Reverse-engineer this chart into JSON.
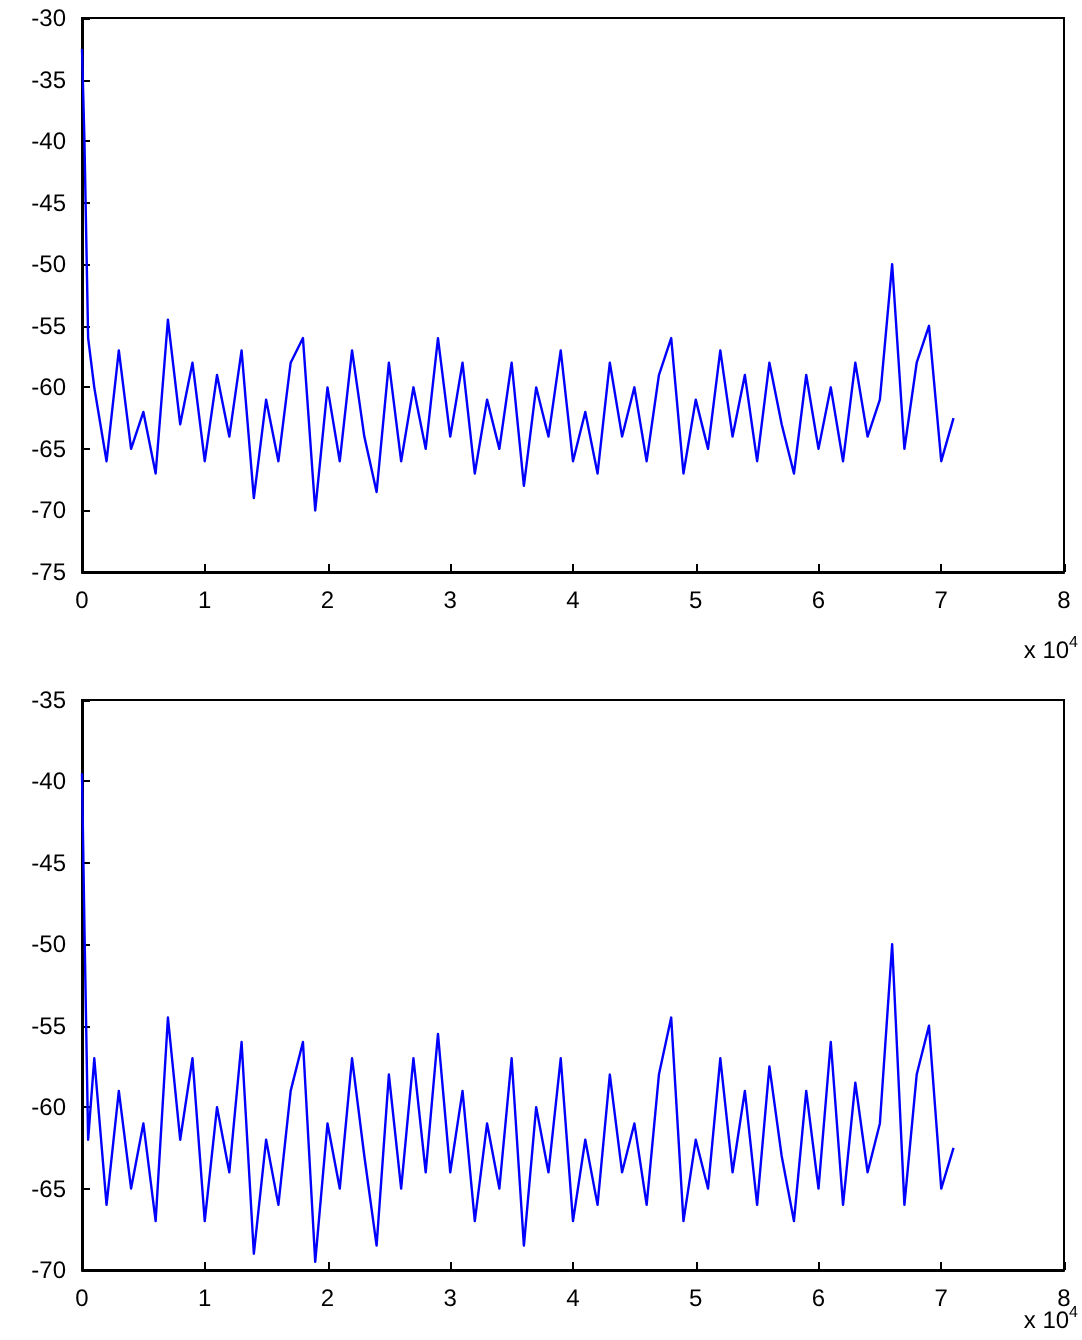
{
  "chart_data": [
    {
      "type": "line",
      "x": [
        0,
        0.02,
        0.05,
        0.1,
        0.2,
        0.3,
        0.4,
        0.5,
        0.6,
        0.7,
        0.8,
        0.9,
        1.0,
        1.1,
        1.2,
        1.3,
        1.4,
        1.5,
        1.6,
        1.7,
        1.8,
        1.9,
        2.0,
        2.1,
        2.2,
        2.3,
        2.4,
        2.5,
        2.6,
        2.7,
        2.8,
        2.9,
        3.0,
        3.1,
        3.2,
        3.3,
        3.4,
        3.5,
        3.6,
        3.7,
        3.8,
        3.9,
        4.0,
        4.1,
        4.2,
        4.3,
        4.4,
        4.5,
        4.6,
        4.7,
        4.8,
        4.9,
        5.0,
        5.1,
        5.2,
        5.3,
        5.4,
        5.5,
        5.6,
        5.7,
        5.8,
        5.9,
        6.0,
        6.1,
        6.2,
        6.3,
        6.4,
        6.5,
        6.6,
        6.7,
        6.8,
        6.9,
        7.0,
        7.1
      ],
      "series": [
        {
          "color": "#0000ff",
          "values": [
            -32.5,
            -40,
            -56,
            -60,
            -66,
            -57,
            -65,
            -62,
            -67,
            -54.5,
            -63,
            -58,
            -66,
            -59,
            -64,
            -57,
            -69,
            -61,
            -66,
            -58,
            -56,
            -70,
            -60,
            -66,
            -57,
            -64,
            -68.5,
            -58,
            -66,
            -60,
            -65,
            -56,
            -64,
            -58,
            -67,
            -61,
            -65,
            -58,
            -68,
            -60,
            -64,
            -57,
            -66,
            -62,
            -67,
            -58,
            -64,
            -60,
            -66,
            -59,
            -56,
            -67,
            -61,
            -65,
            -57,
            -64,
            -59,
            -66,
            -58,
            -63,
            -67,
            -59,
            -65,
            -60,
            -66,
            -58,
            -64,
            -61,
            -50,
            -65,
            -58,
            -55,
            -66,
            -62.5
          ]
        }
      ],
      "xlim": [
        0,
        8
      ],
      "xticks": [
        0,
        1,
        2,
        3,
        4,
        5,
        6,
        7,
        8
      ],
      "ylim": [
        -75,
        -30
      ],
      "yticks": [
        -75,
        -70,
        -65,
        -60,
        -55,
        -50,
        -45,
        -40,
        -35,
        -30
      ],
      "annotations": [
        "x 10$^{4}$"
      ],
      "grid": false,
      "marker": "none",
      "line_style": "solid"
    },
    {
      "type": "line",
      "x": [
        0,
        0.02,
        0.05,
        0.1,
        0.2,
        0.3,
        0.4,
        0.5,
        0.6,
        0.7,
        0.8,
        0.9,
        1.0,
        1.1,
        1.2,
        1.3,
        1.4,
        1.5,
        1.6,
        1.7,
        1.8,
        1.9,
        2.0,
        2.1,
        2.2,
        2.3,
        2.4,
        2.5,
        2.6,
        2.7,
        2.8,
        2.9,
        3.0,
        3.1,
        3.2,
        3.3,
        3.4,
        3.5,
        3.6,
        3.7,
        3.8,
        3.9,
        4.0,
        4.1,
        4.2,
        4.3,
        4.4,
        4.5,
        4.6,
        4.7,
        4.8,
        4.9,
        5.0,
        5.1,
        5.2,
        5.3,
        5.4,
        5.5,
        5.6,
        5.7,
        5.8,
        5.9,
        6.0,
        6.1,
        6.2,
        6.3,
        6.4,
        6.5,
        6.6,
        6.7,
        6.8,
        6.9,
        7.0,
        7.1
      ],
      "series": [
        {
          "color": "#0000ff",
          "values": [
            -39.5,
            -49,
            -62,
            -57,
            -66,
            -59,
            -65,
            -61,
            -67,
            -54.5,
            -62,
            -57,
            -67,
            -60,
            -64,
            -56,
            -69,
            -62,
            -66,
            -59,
            -56,
            -69.5,
            -61,
            -65,
            -57,
            -63,
            -68.5,
            -58,
            -65,
            -57,
            -64,
            -55.5,
            -64,
            -59,
            -67,
            -61,
            -65,
            -57,
            -68.5,
            -60,
            -64,
            -57,
            -67,
            -62,
            -66,
            -58,
            -64,
            -61,
            -66,
            -58,
            -54.5,
            -67,
            -62,
            -65,
            -57,
            -64,
            -59,
            -66,
            -57.5,
            -63,
            -67,
            -59,
            -65,
            -56,
            -66,
            -58.5,
            -64,
            -61,
            -50,
            -66,
            -58,
            -55,
            -65,
            -62.5
          ]
        }
      ],
      "xlim": [
        0,
        8
      ],
      "xticks": [
        0,
        1,
        2,
        3,
        4,
        5,
        6,
        7,
        8
      ],
      "ylim": [
        -70,
        -35
      ],
      "yticks": [
        -70,
        -65,
        -60,
        -55,
        -50,
        -45,
        -40,
        -35
      ],
      "annotations": [
        "x 10$^{4}$"
      ],
      "grid": false,
      "marker": "none",
      "line_style": "solid"
    }
  ]
}
